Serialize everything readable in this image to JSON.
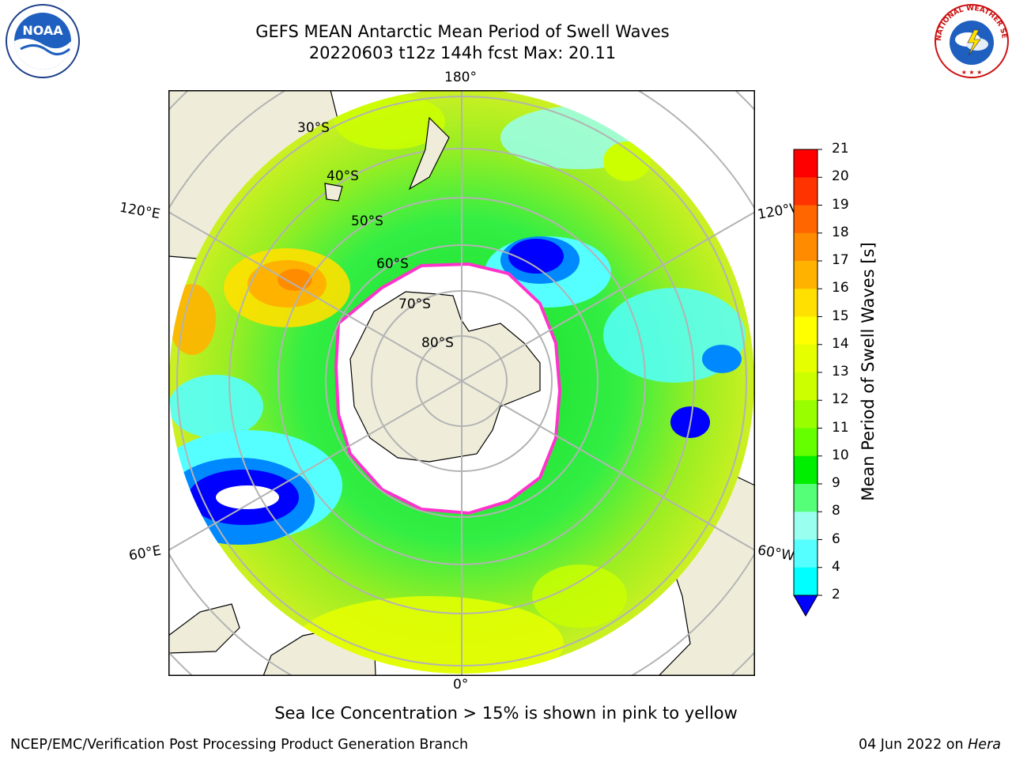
{
  "title": {
    "line1": "GEFS MEAN Antarctic Mean Period of Swell Waves",
    "line2": "20220603 t12z 144h fcst   Max: 20.11"
  },
  "map": {
    "projection": "south-polar-stereographic",
    "longitude_labels": {
      "top": "180°",
      "bottom": "0°",
      "left_upper": "120°E",
      "left_lower": "60°E",
      "right_upper": "120°W",
      "right_lower": "60°W"
    },
    "latitude_labels": [
      "30°S",
      "40°S",
      "50°S",
      "60°S",
      "70°S",
      "80°S"
    ]
  },
  "colorbar": {
    "label": "Mean Period of Swell Waves [s]",
    "ticks": [
      "21",
      "20",
      "19",
      "18",
      "17",
      "16",
      "15",
      "14",
      "13",
      "12",
      "11",
      "10",
      "9",
      "8",
      "6",
      "4",
      "2"
    ],
    "colors": [
      "#ff0000",
      "#ff3300",
      "#ff6600",
      "#ff8c00",
      "#ffb300",
      "#ffe000",
      "#ffff00",
      "#e6ff00",
      "#ccff00",
      "#99ff00",
      "#66ff00",
      "#00ee00",
      "#55ff77",
      "#99ffee",
      "#55ffff",
      "#00ffff",
      "#0088ff",
      "#0000ff"
    ]
  },
  "note": "Sea Ice Concentration > 15% is shown in pink to yellow",
  "footer": {
    "left": "NCEP/EMC/Verification Post Processing Product Generation Branch",
    "date": "04 Jun 2022 on ",
    "machine": "Hera"
  },
  "logos": {
    "noaa_text": "NOAA",
    "nws_ring_text": "NATIONAL WEATHER SERVICE"
  }
}
